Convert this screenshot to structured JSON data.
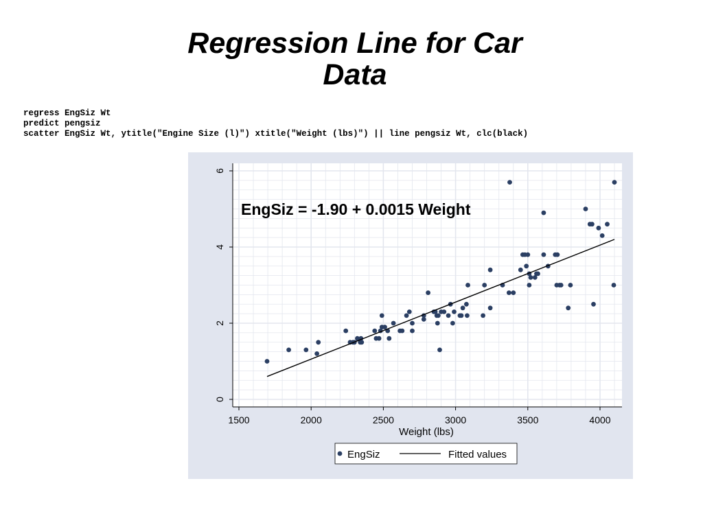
{
  "slide": {
    "title_line1": "Regression Line for Car",
    "title_line2": "Data"
  },
  "code": [
    "regress EngSiz Wt",
    "predict pengsiz",
    "scatter EngSiz Wt, ytitle(\"Engine Size (l)\") xtitle(\"Weight (lbs)\") || line pengsiz Wt, clc(black)"
  ],
  "colors": {
    "panel_background": "#e1e5ef",
    "plot_background": "#ffffff",
    "grid": "#e3e6ee",
    "marker": "#2b3f63",
    "fitted_line": "#000000"
  },
  "chart_data": {
    "type": "scatter",
    "title": "",
    "xlabel": "Weight (lbs)",
    "ylabel": "",
    "xlim": [
      1500,
      4100
    ],
    "ylim": [
      0,
      6
    ],
    "xticks": [
      1500,
      2000,
      2500,
      3000,
      3500,
      4000
    ],
    "yticks": [
      0,
      2,
      4,
      6
    ],
    "grid": true,
    "annotation": "EngSiz = -1.90 + 0.0015 Weight",
    "legend_position": "bottom",
    "series": [
      {
        "name": "EngSiz",
        "type": "scatter",
        "x": [
          1695,
          1845,
          1965,
          2040,
          2050,
          2240,
          2270,
          2290,
          2300,
          2320,
          2340,
          2345,
          2350,
          2440,
          2450,
          2470,
          2480,
          2490,
          2490,
          2510,
          2530,
          2540,
          2570,
          2615,
          2630,
          2660,
          2680,
          2700,
          2700,
          2780,
          2780,
          2810,
          2850,
          2860,
          2870,
          2875,
          2880,
          2890,
          2900,
          2920,
          2950,
          2965,
          2980,
          2990,
          3030,
          3040,
          3050,
          3075,
          3080,
          3085,
          3190,
          3200,
          3240,
          3240,
          3325,
          3370,
          3375,
          3400,
          3450,
          3465,
          3480,
          3490,
          3500,
          3510,
          3510,
          3520,
          3550,
          3560,
          3570,
          3610,
          3610,
          3640,
          3690,
          3700,
          3705,
          3720,
          3730,
          3780,
          3795,
          3900,
          3930,
          3945,
          3955,
          3990,
          4015,
          4050,
          4095,
          4100
        ],
        "y": [
          1.0,
          1.3,
          1.3,
          1.2,
          1.5,
          1.8,
          1.5,
          1.5,
          1.5,
          1.6,
          1.5,
          1.6,
          1.5,
          1.8,
          1.6,
          1.6,
          1.8,
          2.2,
          1.9,
          1.9,
          1.8,
          1.6,
          2.0,
          1.8,
          1.8,
          2.2,
          2.3,
          2.0,
          1.8,
          2.1,
          2.2,
          2.8,
          2.3,
          2.3,
          2.2,
          2.0,
          2.2,
          1.3,
          2.3,
          2.3,
          2.2,
          2.5,
          2.0,
          2.3,
          2.2,
          2.2,
          2.4,
          2.5,
          2.2,
          3.0,
          2.2,
          3.0,
          3.4,
          2.4,
          3.0,
          2.8,
          5.7,
          2.8,
          3.4,
          3.8,
          3.8,
          3.5,
          3.8,
          3.3,
          3.0,
          3.2,
          3.2,
          3.3,
          3.3,
          3.8,
          4.9,
          3.5,
          3.8,
          3.0,
          3.8,
          3.0,
          3.0,
          2.4,
          3.0,
          5.0,
          4.6,
          4.6,
          2.5,
          4.5,
          4.3,
          4.6,
          3.0,
          5.7
        ]
      },
      {
        "name": "Fitted values",
        "type": "line",
        "x": [
          1695,
          4100
        ],
        "y": [
          0.6,
          4.2
        ]
      }
    ]
  }
}
